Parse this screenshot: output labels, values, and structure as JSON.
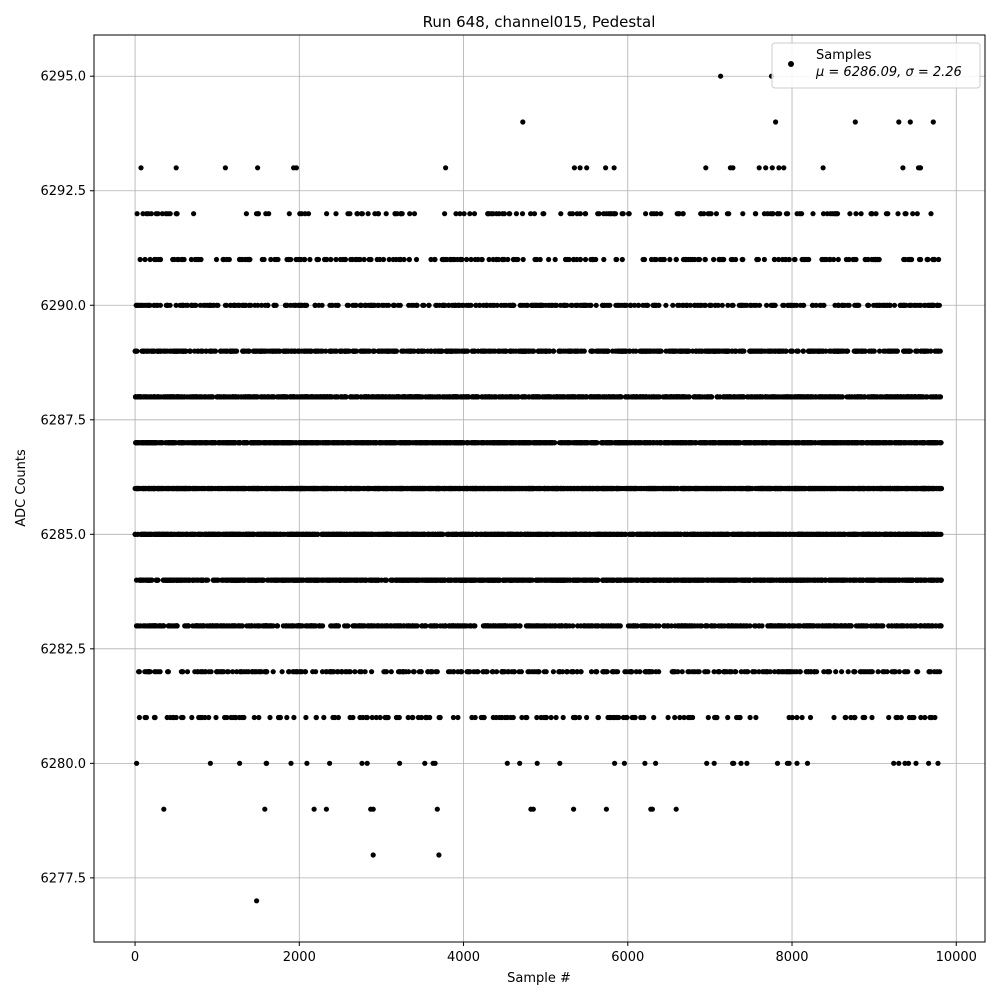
{
  "chart_data": {
    "type": "scatter",
    "title": "Run 648, channel015, Pedestal",
    "xlabel": "Sample #",
    "ylabel": "ADC Counts",
    "xlim": [
      -500,
      10350
    ],
    "ylim": [
      6276.1,
      6295.9
    ],
    "xticks": [
      0,
      2000,
      4000,
      6000,
      8000,
      10000
    ],
    "xtick_labels": [
      "0",
      "2000",
      "4000",
      "6000",
      "8000",
      "10000"
    ],
    "yticks": [
      6277.5,
      6280.0,
      6282.5,
      6285.0,
      6287.5,
      6290.0,
      6292.5,
      6295.0
    ],
    "ytick_labels": [
      "6277.5",
      "6280.0",
      "6282.5",
      "6285.0",
      "6287.5",
      "6290.0",
      "6292.5",
      "6295.0"
    ],
    "grid": true,
    "legend_position": "top-right",
    "legend": {
      "label": "Samples",
      "stats": "μ = 6286.09, σ = 2.26"
    },
    "series": [
      {
        "name": "Samples",
        "color": "#000000",
        "x_range": [
          0,
          9820
        ],
        "level_counts": {
          "6277": 1,
          "6278": 2,
          "6279": 14,
          "6280": 40,
          "6281": 170,
          "6282": 330,
          "6283": 680,
          "6284": 1180,
          "6285": 1620,
          "6286": 1800,
          "6287": 1620,
          "6288": 1180,
          "6289": 700,
          "6290": 430,
          "6291": 250,
          "6292": 150,
          "6293": 25,
          "6294": 6,
          "6295": 2
        },
        "sample_points": [
          {
            "x": 1480,
            "y": 6277
          },
          {
            "x": 2900,
            "y": 6278
          },
          {
            "x": 3700,
            "y": 6278
          },
          {
            "x": 350,
            "y": 6279
          },
          {
            "x": 1580,
            "y": 6279
          },
          {
            "x": 2180,
            "y": 6279
          },
          {
            "x": 2330,
            "y": 6279
          },
          {
            "x": 2870,
            "y": 6279
          },
          {
            "x": 2900,
            "y": 6279
          },
          {
            "x": 3680,
            "y": 6279
          },
          {
            "x": 4820,
            "y": 6279
          },
          {
            "x": 4850,
            "y": 6279
          },
          {
            "x": 5340,
            "y": 6279
          },
          {
            "x": 5740,
            "y": 6279
          },
          {
            "x": 6280,
            "y": 6279
          },
          {
            "x": 6300,
            "y": 6279
          },
          {
            "x": 6590,
            "y": 6279
          },
          {
            "x": 1100,
            "y": 6293
          },
          {
            "x": 1930,
            "y": 6293
          },
          {
            "x": 5350,
            "y": 6293
          },
          {
            "x": 5420,
            "y": 6293
          },
          {
            "x": 5500,
            "y": 6293
          },
          {
            "x": 5730,
            "y": 6293
          },
          {
            "x": 7250,
            "y": 6293
          },
          {
            "x": 7280,
            "y": 6293
          },
          {
            "x": 7600,
            "y": 6293
          },
          {
            "x": 7680,
            "y": 6293
          },
          {
            "x": 7760,
            "y": 6293
          },
          {
            "x": 7840,
            "y": 6293
          },
          {
            "x": 7900,
            "y": 6293
          },
          {
            "x": 9350,
            "y": 6293
          },
          {
            "x": 9540,
            "y": 6293
          },
          {
            "x": 9560,
            "y": 6293
          },
          {
            "x": 7800,
            "y": 6294
          },
          {
            "x": 8770,
            "y": 6294
          },
          {
            "x": 9300,
            "y": 6294
          },
          {
            "x": 9440,
            "y": 6294
          },
          {
            "x": 9720,
            "y": 6294
          },
          {
            "x": 7130,
            "y": 6295
          },
          {
            "x": 7750,
            "y": 6295
          }
        ],
        "generation_seed": 648
      }
    ]
  }
}
